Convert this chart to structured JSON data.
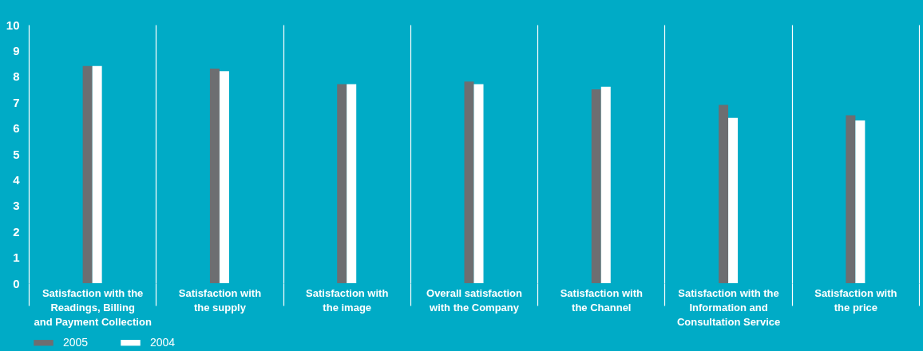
{
  "chart_data": {
    "type": "bar",
    "categories": [
      "Satisfaction with the\nReadings, Billing\nand Payment Collection",
      "Satisfaction with\nthe supply",
      "Satisfaction with\nthe image",
      "Overall satisfaction\nwith the Company",
      "Satisfaction with\nthe Channel",
      "Satisfaction with the\nInformation and\nConsultation Service",
      "Satisfaction with\nthe price"
    ],
    "series": [
      {
        "name": "2005",
        "color": "#6d6e71",
        "values": [
          8.4,
          8.3,
          7.7,
          7.8,
          7.5,
          6.9,
          6.5
        ]
      },
      {
        "name": "2004",
        "color": "#ffffff",
        "values": [
          8.4,
          8.2,
          7.7,
          7.7,
          7.6,
          6.4,
          6.3
        ]
      }
    ],
    "ylim": [
      0,
      10
    ],
    "yticks": [
      0,
      1,
      2,
      3,
      4,
      5,
      6,
      7,
      8,
      9,
      10
    ],
    "grid": "x",
    "legend": "bottom left"
  }
}
